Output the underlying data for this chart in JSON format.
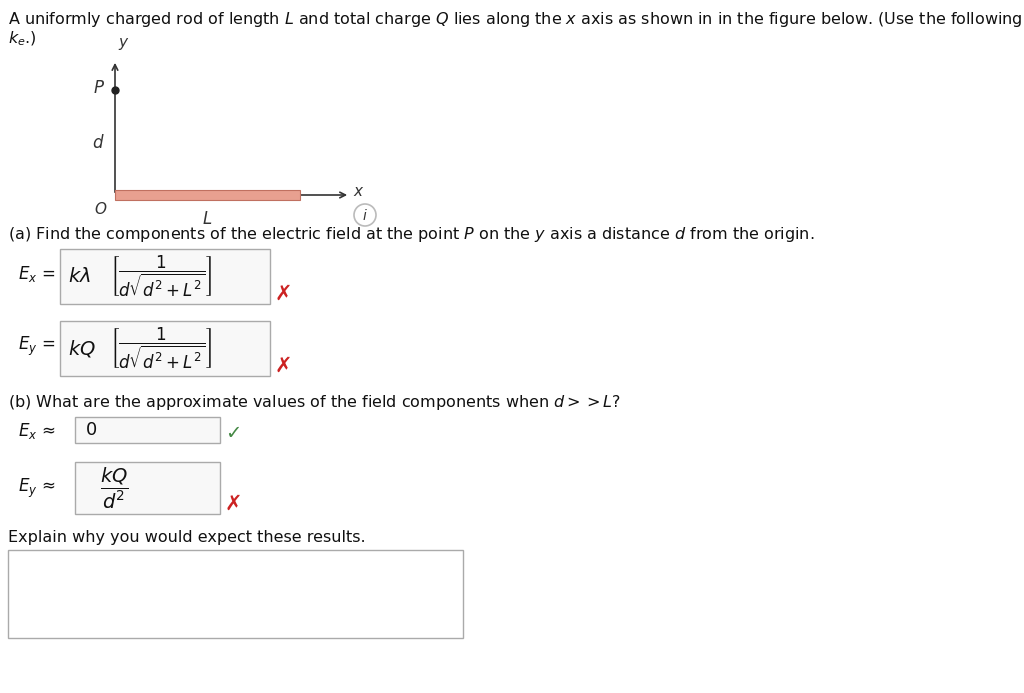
{
  "bg_color": "#ffffff",
  "line1": "A uniformly charged rod of length $L$ and total charge $Q$ lies along the $x$ axis as shown in in the figure below. (Use the following as necessary: $Q$, $L$, $d$, and",
  "line2": "$k_e$.)",
  "rod_color": "#e8a090",
  "rod_edge_color": "#c07060",
  "axis_color": "#333333",
  "part_a_text": "(a) Find the components of the electric field at the point $P$ on the $y$ axis a distance $d$ from the origin.",
  "part_b_text": "(b) What are the approximate values of the field components when $d >> L$?",
  "explain_text": "Explain why you would expect these results.",
  "wrong_color": "#cc2222",
  "correct_color": "#448844",
  "text_color": "#111111",
  "box_edge_color": "#aaaaaa",
  "box_face_color": "#f8f8f8"
}
